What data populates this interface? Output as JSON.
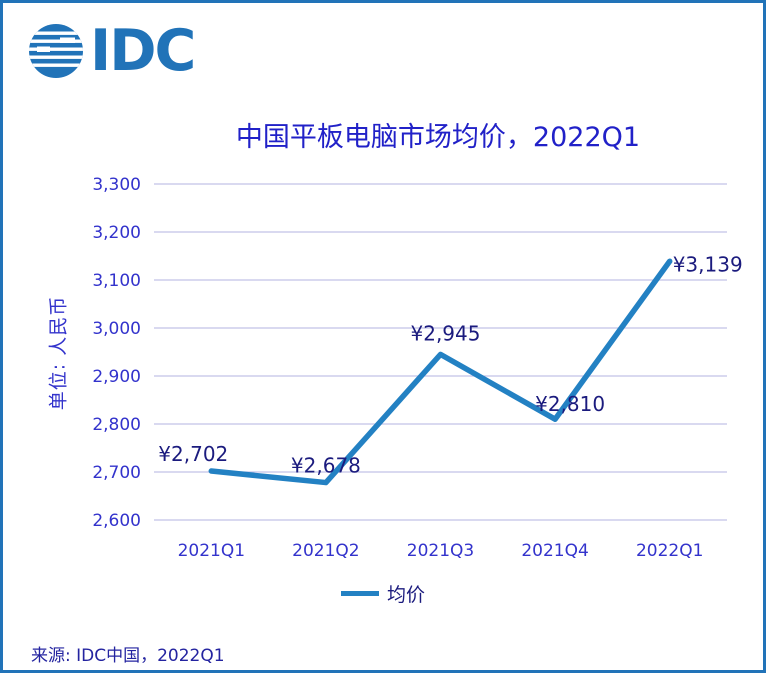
{
  "brand": {
    "name": "IDC"
  },
  "title": "中国平板电脑市场均价，2022Q1",
  "chart_data": {
    "type": "line",
    "title": "中国平板电脑市场均价，2022Q1",
    "categories": [
      "2021Q1",
      "2021Q2",
      "2021Q3",
      "2021Q4",
      "2022Q1"
    ],
    "series": [
      {
        "name": "均价",
        "values": [
          2702,
          2678,
          2945,
          2810,
          3139
        ]
      }
    ],
    "data_labels": [
      "¥2,702",
      "¥2,678",
      "¥2,945",
      "¥2,810",
      "¥3,139"
    ],
    "xlabel": "",
    "ylabel": "单位: 人民币",
    "ylim": [
      2600,
      3300
    ],
    "y_tick_step": 100,
    "y_tick_labels": [
      "3,300",
      "3,200",
      "3,100",
      "3,000",
      "2,900",
      "2,800",
      "2,700",
      "2,600"
    ],
    "grid": true,
    "legend_position": "bottom"
  },
  "legend": {
    "label": "均价"
  },
  "source": "来源: IDC中国，2022Q1",
  "colors": {
    "frame_border": "#2173B8",
    "line": "#2381C3",
    "gridline": "#C2C2E8",
    "axis_text": "#3333CC",
    "title_text": "#2121C8",
    "data_label_text": "#1B1B7E",
    "source_text": "#2424A0"
  }
}
